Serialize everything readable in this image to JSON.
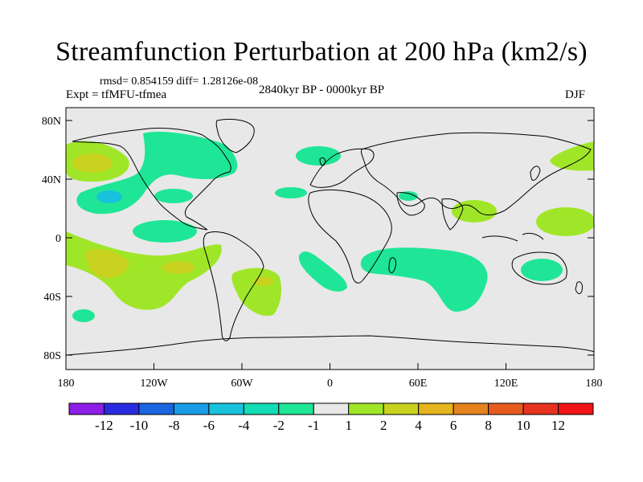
{
  "title": "Streamfunction Perturbation at 200 hPa (km2/s)",
  "stats": "rmsd= 0.854159 diff= 1.28126e-08",
  "experiment": "Expt = tfMFU-tfmea",
  "period": "2840kyr BP - 0000kyr BP",
  "season": "DJF",
  "axes": {
    "x_ticks": [
      "180",
      "120W",
      "60W",
      "0",
      "60E",
      "120E",
      "180"
    ],
    "y_ticks": [
      "80N",
      "40N",
      "0",
      "40S",
      "80S"
    ]
  },
  "colorbar": {
    "labels": [
      "-12",
      "-10",
      "-8",
      "-6",
      "-4",
      "-2",
      "-1",
      "1",
      "2",
      "4",
      "6",
      "8",
      "10",
      "12"
    ],
    "colors": [
      "#8c1ee6",
      "#2a2ae0",
      "#1b66e0",
      "#1a9de6",
      "#18c2dc",
      "#14dcb4",
      "#1ee696",
      "#e8e8e8",
      "#a0e628",
      "#c8d21e",
      "#e6b41e",
      "#e6821e",
      "#e65a1e",
      "#e6321e",
      "#f01414"
    ]
  },
  "colors": {
    "background": "#e8e8e8",
    "neg_1": "#1ee696",
    "neg_2": "#18c2dc",
    "pos_1": "#a0e628",
    "pos_2": "#c8d21e",
    "pos_3": "#e6b41e"
  }
}
